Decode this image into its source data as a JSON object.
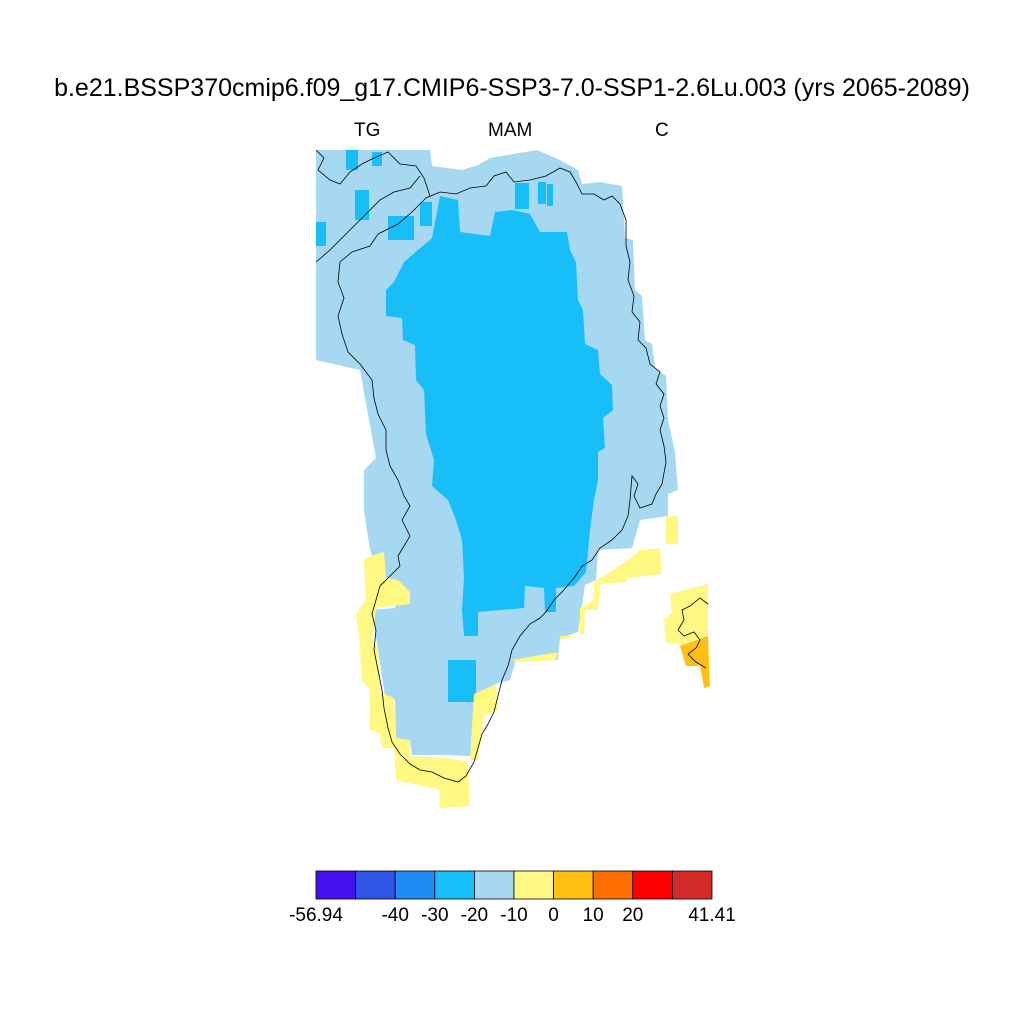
{
  "title": "b.e21.BSSP370cmip6.f09_g17.CMIP6-SSP3-7.0-SSP1-2.6Lu.003 (yrs 2065-2089)",
  "subtitle": {
    "left": "TG",
    "center": "MAM",
    "right": "C"
  },
  "colorbar": {
    "colors": [
      "#4410f0",
      "#2f55e6",
      "#1e8cf5",
      "#18bef8",
      "#a6d8f2",
      "#fff882",
      "#ffc012",
      "#ff6e00",
      "#ff0000",
      "#d42a2a"
    ],
    "tick_labels": [
      "-56.94",
      "-40",
      "-30",
      "-20",
      "-10",
      "0",
      "10",
      "20",
      "41.41"
    ]
  },
  "map_colors": {
    "outer_band": "#a6d8f2",
    "interior": "#18bef8",
    "south_coast": "#fff882",
    "warm_patch": "#ffc012",
    "coastline": "#000000"
  }
}
